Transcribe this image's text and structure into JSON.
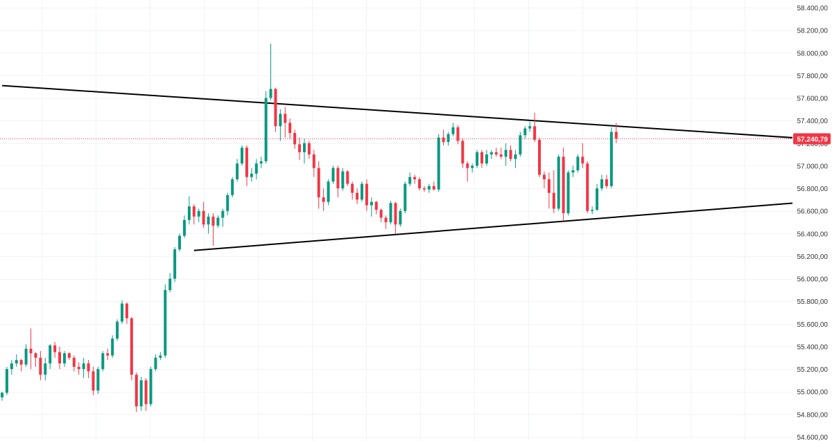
{
  "chart_data": {
    "type": "candlestick",
    "title": "",
    "xlabel": "",
    "ylabel": "",
    "ylim": [
      54600,
      58400
    ],
    "y_ticks": [
      {
        "value": 58400,
        "label": "58.400,00"
      },
      {
        "value": 58200,
        "label": "58.200,00"
      },
      {
        "value": 58000,
        "label": "58.000,00"
      },
      {
        "value": 57800,
        "label": "57.800,00"
      },
      {
        "value": 57600,
        "label": "57.600,00"
      },
      {
        "value": 57400,
        "label": "57.400,00"
      },
      {
        "value": 57200,
        "label": "57.200,00"
      },
      {
        "value": 57000,
        "label": "57.000,00"
      },
      {
        "value": 56800,
        "label": "56.800,00"
      },
      {
        "value": 56600,
        "label": "56.600,00"
      },
      {
        "value": 56400,
        "label": "56.400,00"
      },
      {
        "value": 56200,
        "label": "56.200,00"
      },
      {
        "value": 56000,
        "label": "56.000,00"
      },
      {
        "value": 55800,
        "label": "55.800,00"
      },
      {
        "value": 55600,
        "label": "55.600,00"
      },
      {
        "value": 55400,
        "label": "55.400,00"
      },
      {
        "value": 55200,
        "label": "55.200,00"
      },
      {
        "value": 55000,
        "label": "55.000,00"
      },
      {
        "value": 54800,
        "label": "54.800,00"
      },
      {
        "value": 54600,
        "label": "54.600,00"
      }
    ],
    "grid": true,
    "colors": {
      "up": "#089981",
      "down": "#f23645",
      "line": "#000000",
      "grid": "#f0f3fa"
    },
    "last_price": {
      "value": 57240.79,
      "label": "57.240,79"
    },
    "trendlines": [
      {
        "name": "upper-trendline",
        "points": [
          [
            0,
            57710
          ],
          [
            166,
            57245
          ]
        ]
      },
      {
        "name": "lower-trendline",
        "points": [
          [
            40,
            56250
          ],
          [
            168,
            56680
          ]
        ]
      }
    ],
    "candles": [
      [
        54950,
        55000,
        54920,
        54990
      ],
      [
        54990,
        55220,
        54970,
        55200
      ],
      [
        55200,
        55280,
        55150,
        55250
      ],
      [
        55250,
        55330,
        55220,
        55280
      ],
      [
        55280,
        55290,
        55180,
        55240
      ],
      [
        55240,
        55420,
        55220,
        55380
      ],
      [
        55380,
        55560,
        55200,
        55340
      ],
      [
        55340,
        55350,
        55220,
        55300
      ],
      [
        55300,
        55360,
        55100,
        55150
      ],
      [
        55150,
        55300,
        55100,
        55250
      ],
      [
        55250,
        55420,
        55200,
        55410
      ],
      [
        55410,
        55440,
        55300,
        55350
      ],
      [
        55350,
        55400,
        55200,
        55250
      ],
      [
        55250,
        55360,
        55220,
        55340
      ],
      [
        55340,
        55350,
        55280,
        55300
      ],
      [
        55300,
        55320,
        55180,
        55220
      ],
      [
        55220,
        55260,
        55150,
        55200
      ],
      [
        55200,
        55300,
        55120,
        55250
      ],
      [
        55250,
        55280,
        55120,
        55180
      ],
      [
        55180,
        55220,
        54970,
        55010
      ],
      [
        55010,
        55220,
        54980,
        55200
      ],
      [
        55200,
        55360,
        55180,
        55340
      ],
      [
        55340,
        55380,
        55280,
        55320
      ],
      [
        55320,
        55500,
        55300,
        55470
      ],
      [
        55470,
        55640,
        55450,
        55620
      ],
      [
        55620,
        55810,
        55600,
        55780
      ],
      [
        55780,
        55790,
        55600,
        55650
      ],
      [
        55650,
        55660,
        55100,
        55150
      ],
      [
        55150,
        55170,
        54820,
        54870
      ],
      [
        54870,
        55130,
        54830,
        55100
      ],
      [
        55100,
        55120,
        54830,
        54890
      ],
      [
        54890,
        55220,
        54870,
        55200
      ],
      [
        55200,
        55330,
        55180,
        55300
      ],
      [
        55300,
        55350,
        55280,
        55320
      ],
      [
        55320,
        55950,
        55300,
        55900
      ],
      [
        55900,
        56050,
        55880,
        56000
      ],
      [
        56000,
        56280,
        55970,
        56260
      ],
      [
        56260,
        56400,
        56240,
        56380
      ],
      [
        56380,
        56560,
        56360,
        56520
      ],
      [
        56520,
        56730,
        56480,
        56640
      ],
      [
        56640,
        56660,
        56480,
        56550
      ],
      [
        56550,
        56620,
        56500,
        56600
      ],
      [
        56600,
        56680,
        56450,
        56480
      ],
      [
        56480,
        56580,
        56400,
        56550
      ],
      [
        56550,
        56580,
        56290,
        56470
      ],
      [
        56470,
        56560,
        56450,
        56540
      ],
      [
        56540,
        56620,
        56460,
        56600
      ],
      [
        56600,
        56760,
        56560,
        56740
      ],
      [
        56740,
        56900,
        56720,
        56880
      ],
      [
        56880,
        57060,
        56860,
        57020
      ],
      [
        57020,
        57180,
        57000,
        57160
      ],
      [
        57160,
        57180,
        56820,
        56900
      ],
      [
        56900,
        56980,
        56860,
        56930
      ],
      [
        56930,
        57060,
        56880,
        57020
      ],
      [
        57020,
        57080,
        56980,
        57040
      ],
      [
        57040,
        57660,
        57020,
        57600
      ],
      [
        57600,
        58080,
        57580,
        57680
      ],
      [
        57680,
        57690,
        57300,
        57350
      ],
      [
        57350,
        57500,
        57220,
        57460
      ],
      [
        57460,
        57520,
        57250,
        57380
      ],
      [
        57380,
        57420,
        57240,
        57290
      ],
      [
        57290,
        57320,
        57150,
        57190
      ],
      [
        57190,
        57250,
        57050,
        57120
      ],
      [
        57120,
        57240,
        57020,
        57200
      ],
      [
        57200,
        57220,
        57060,
        57100
      ],
      [
        57100,
        57140,
        56900,
        56980
      ],
      [
        56980,
        57040,
        56620,
        56720
      ],
      [
        56720,
        56800,
        56600,
        56680
      ],
      [
        56680,
        56880,
        56650,
        56860
      ],
      [
        56860,
        57000,
        56840,
        56980
      ],
      [
        56980,
        57000,
        56720,
        56800
      ],
      [
        56800,
        56980,
        56780,
        56950
      ],
      [
        56950,
        56960,
        56820,
        56840
      ],
      [
        56840,
        56860,
        56700,
        56760
      ],
      [
        56760,
        56800,
        56660,
        56700
      ],
      [
        56700,
        56860,
        56680,
        56840
      ],
      [
        56840,
        56880,
        56600,
        56650
      ],
      [
        56650,
        56720,
        56550,
        56680
      ],
      [
        56680,
        56690,
        56570,
        56610
      ],
      [
        56610,
        56620,
        56500,
        56540
      ],
      [
        56540,
        56560,
        56440,
        56500
      ],
      [
        56500,
        56690,
        56480,
        56670
      ],
      [
        56670,
        56680,
        56400,
        56480
      ],
      [
        56480,
        56620,
        56460,
        56600
      ],
      [
        56600,
        56860,
        56580,
        56840
      ],
      [
        56840,
        56940,
        56820,
        56900
      ],
      [
        56900,
        56920,
        56840,
        56880
      ],
      [
        56880,
        56900,
        56780,
        56800
      ],
      [
        56800,
        56820,
        56770,
        56790
      ],
      [
        56790,
        56840,
        56760,
        56820
      ],
      [
        56820,
        56860,
        56780,
        56790
      ],
      [
        56790,
        57280,
        56770,
        57250
      ],
      [
        57250,
        57320,
        57180,
        57210
      ],
      [
        57210,
        57300,
        57180,
        57280
      ],
      [
        57280,
        57380,
        57260,
        57340
      ],
      [
        57340,
        57360,
        57190,
        57220
      ],
      [
        57220,
        57240,
        56980,
        57020
      ],
      [
        57020,
        57040,
        56860,
        56980
      ],
      [
        56980,
        57020,
        56940,
        57000
      ],
      [
        57000,
        57140,
        56980,
        57120
      ],
      [
        57120,
        57140,
        56980,
        57020
      ],
      [
        57020,
        57140,
        57000,
        57100
      ],
      [
        57100,
        57140,
        57060,
        57120
      ],
      [
        57120,
        57160,
        57080,
        57100
      ],
      [
        57100,
        57160,
        57060,
        57080
      ],
      [
        57080,
        57200,
        57000,
        57140
      ],
      [
        57140,
        57180,
        57040,
        57060
      ],
      [
        57060,
        57140,
        56980,
        57100
      ],
      [
        57100,
        57300,
        57080,
        57270
      ],
      [
        57270,
        57350,
        57240,
        57330
      ],
      [
        57330,
        57390,
        57300,
        57350
      ],
      [
        57350,
        57470,
        57210,
        57230
      ],
      [
        57230,
        57250,
        56900,
        56920
      ],
      [
        56920,
        56950,
        56800,
        56880
      ],
      [
        56880,
        56940,
        56620,
        56760
      ],
      [
        56760,
        56960,
        56580,
        56620
      ],
      [
        56620,
        57100,
        56600,
        57080
      ],
      [
        57080,
        57160,
        56510,
        56580
      ],
      [
        56580,
        56960,
        56560,
        56940
      ],
      [
        56940,
        57000,
        56900,
        56960
      ],
      [
        56960,
        57100,
        56940,
        57080
      ],
      [
        57080,
        57200,
        56980,
        57020
      ],
      [
        57020,
        57040,
        56580,
        56600
      ],
      [
        56600,
        56640,
        56570,
        56610
      ],
      [
        56610,
        56840,
        56600,
        56800
      ],
      [
        56800,
        56920,
        56780,
        56880
      ],
      [
        56880,
        56920,
        56800,
        56820
      ],
      [
        56820,
        57340,
        56800,
        57300
      ],
      [
        57300,
        57380,
        57200,
        57240
      ]
    ]
  }
}
